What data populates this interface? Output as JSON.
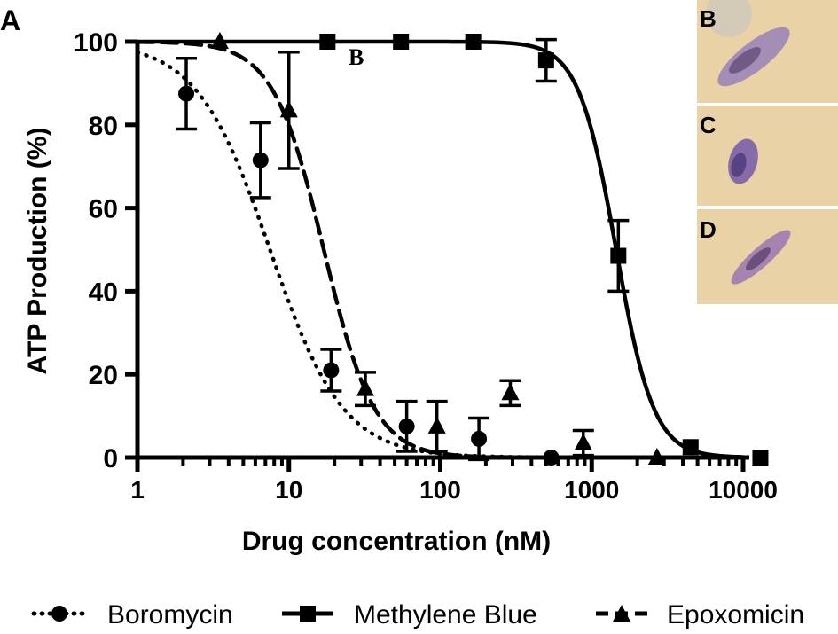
{
  "panel_label": "A",
  "stray_label": "B",
  "images": [
    {
      "label": "B",
      "icon": "parasite-elongated-image"
    },
    {
      "label": "C",
      "icon": "parasite-rounded-image"
    },
    {
      "label": "D",
      "icon": "parasite-slender-image"
    }
  ],
  "colors": {
    "line": "#000000",
    "photo_bg": "#e9d3a6",
    "cell": "#8f6fb0"
  },
  "chart_data": {
    "type": "scatter",
    "xlabel": "Drug concentration (nM)",
    "ylabel": "ATP Production (%)",
    "xscale": "log",
    "xlim": [
      1,
      10000
    ],
    "ylim": [
      0,
      100
    ],
    "xticks": [
      1,
      10,
      100,
      1000,
      10000
    ],
    "xtick_labels": [
      "1",
      "10",
      "100",
      "1000",
      "10000"
    ],
    "yticks": [
      0,
      20,
      40,
      60,
      80,
      100
    ],
    "ytick_labels": [
      "0",
      "20",
      "40",
      "60",
      "80",
      "100"
    ],
    "legend_position": "bottom",
    "series": [
      {
        "name": "Boromycin",
        "marker": "circle",
        "line_style": "dotted",
        "ic50": 7.5,
        "hill": 1.8,
        "x": [
          2.1,
          6.5,
          19,
          60,
          180,
          540
        ],
        "y": [
          87.5,
          71.5,
          21,
          7.5,
          4.5,
          0
        ],
        "err": [
          8.5,
          9,
          5,
          6,
          5,
          0
        ]
      },
      {
        "name": "Methylene Blue",
        "marker": "square",
        "line_style": "solid",
        "ic50": 1450,
        "hill": 3.5,
        "x": [
          18,
          55,
          165,
          500,
          1500,
          4500,
          13000
        ],
        "y": [
          100,
          100,
          100,
          95.5,
          48.5,
          2.5,
          0
        ],
        "err": [
          0,
          0,
          0,
          5,
          8.5,
          0,
          0
        ]
      },
      {
        "name": "Epoxomicin",
        "marker": "triangle",
        "line_style": "dashed",
        "ic50": 17,
        "hill": 2.6,
        "x": [
          3.5,
          10,
          32,
          95,
          290,
          880,
          2700
        ],
        "y": [
          100,
          83.5,
          16.5,
          7.5,
          15.5,
          3.5,
          0
        ],
        "err": [
          0,
          14,
          4,
          6,
          3,
          3,
          0
        ]
      }
    ]
  }
}
